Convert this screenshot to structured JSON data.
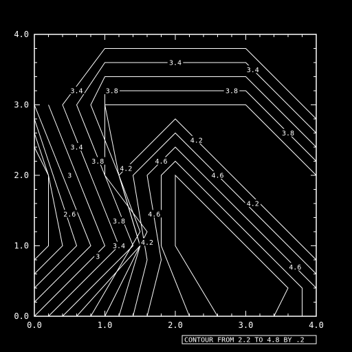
{
  "chart_data": {
    "type": "contour",
    "title": "",
    "xlabel": "",
    "ylabel": "",
    "xlim": [
      0,
      4
    ],
    "ylim": [
      0,
      4
    ],
    "x_ticks": [
      "0.0",
      "1.0",
      "2.0",
      "3.0",
      "4.0"
    ],
    "y_ticks": [
      "0.0",
      "1.0",
      "2.0",
      "3.0",
      "4.0"
    ],
    "grid": false,
    "footer": "CONTOUR FROM 2.2 TO 4.8 BY .2",
    "contour_levels": {
      "min": 2.2,
      "max": 4.8,
      "step": 0.2
    },
    "contours": [
      {
        "points": [
          [
            0.0,
            0.8
          ],
          [
            0.2,
            1.0
          ],
          [
            0.2,
            2.0
          ],
          [
            0.0,
            2.4
          ]
        ]
      },
      {
        "points": [
          [
            0.0,
            0.6
          ],
          [
            0.4,
            1.0
          ],
          [
            0.2,
            2.0
          ],
          [
            0.0,
            2.6
          ]
        ]
      },
      {
        "points": [
          [
            0.0,
            0.4
          ],
          [
            0.6,
            1.0
          ],
          [
            0.2,
            2.2
          ],
          [
            0.0,
            2.8
          ]
        ]
      },
      {
        "points": [
          [
            0.0,
            0.2
          ],
          [
            0.8,
            1.0
          ],
          [
            0.4,
            2.0
          ],
          [
            0.0,
            3.0
          ]
        ]
      },
      {
        "points": [
          [
            0.0,
            0.0
          ],
          [
            1.0,
            1.0
          ],
          [
            0.6,
            2.0
          ],
          [
            0.2,
            3.0
          ]
        ]
      },
      {
        "points": [
          [
            0.2,
            0.0
          ],
          [
            1.2,
            1.0
          ],
          [
            0.8,
            2.0
          ],
          [
            0.4,
            3.0
          ],
          [
            1.0,
            3.8
          ],
          [
            3.0,
            3.8
          ],
          [
            4.0,
            2.8
          ]
        ]
      },
      {
        "points": [
          [
            0.4,
            0.0
          ],
          [
            1.4,
            1.0
          ],
          [
            1.0,
            2.0
          ],
          [
            0.6,
            3.0
          ],
          [
            1.0,
            3.6
          ],
          [
            3.0,
            3.6
          ],
          [
            4.0,
            2.6
          ]
        ]
      },
      {
        "points": [
          [
            0.6,
            0.0
          ],
          [
            1.5,
            1.0
          ],
          [
            1.2,
            2.0
          ],
          [
            0.8,
            3.0
          ],
          [
            1.0,
            3.4
          ],
          [
            3.0,
            3.4
          ],
          [
            4.0,
            2.4
          ]
        ]
      },
      {
        "points": [
          [
            0.8,
            0.0
          ],
          [
            1.5,
            1.2
          ],
          [
            1.2,
            2.0
          ],
          [
            1.0,
            3.0
          ],
          [
            1.0,
            3.2
          ],
          [
            3.0,
            3.2
          ],
          [
            4.0,
            2.2
          ]
        ]
      },
      {
        "points": [
          [
            1.0,
            0.0
          ],
          [
            1.6,
            1.2
          ],
          [
            1.0,
            2.0
          ],
          [
            1.0,
            3.0
          ],
          [
            3.0,
            3.0
          ],
          [
            4.0,
            2.0
          ]
        ]
      },
      {
        "points": [
          [
            1.2,
            0.0
          ],
          [
            1.5,
            1.0
          ],
          [
            1.2,
            2.0
          ],
          [
            2.0,
            2.8
          ],
          [
            4.0,
            0.8
          ]
        ]
      },
      {
        "points": [
          [
            1.4,
            0.0
          ],
          [
            1.6,
            0.8
          ],
          [
            1.4,
            2.0
          ],
          [
            2.0,
            2.6
          ],
          [
            4.0,
            0.6
          ]
        ]
      },
      {
        "points": [
          [
            1.6,
            0.0
          ],
          [
            1.8,
            0.8
          ],
          [
            1.6,
            2.0
          ],
          [
            2.0,
            2.4
          ],
          [
            4.0,
            0.4
          ]
        ]
      },
      {
        "points": [
          [
            2.2,
            0.0
          ],
          [
            1.8,
            1.0
          ],
          [
            1.8,
            2.0
          ],
          [
            2.0,
            2.2
          ],
          [
            3.8,
            0.4
          ],
          [
            3.8,
            0.0
          ]
        ]
      },
      {
        "points": [
          [
            2.6,
            0.0
          ],
          [
            2.0,
            1.0
          ],
          [
            2.0,
            2.0
          ],
          [
            2.0,
            2.0
          ],
          [
            3.6,
            0.4
          ],
          [
            3.4,
            0.0
          ]
        ]
      }
    ],
    "labels": [
      {
        "text": "3.4",
        "x": 2.0,
        "y": 3.6
      },
      {
        "text": "3.4",
        "x": 0.6,
        "y": 3.2
      },
      {
        "text": "3.8",
        "x": 1.1,
        "y": 3.2
      },
      {
        "text": "3.8",
        "x": 2.8,
        "y": 3.2
      },
      {
        "text": "3.4",
        "x": 3.1,
        "y": 3.5
      },
      {
        "text": "3.8",
        "x": 3.6,
        "y": 2.6
      },
      {
        "text": "3.4",
        "x": 0.6,
        "y": 2.4
      },
      {
        "text": "3.8",
        "x": 0.9,
        "y": 2.2
      },
      {
        "text": "4.2",
        "x": 1.3,
        "y": 2.1
      },
      {
        "text": "4.6",
        "x": 1.8,
        "y": 2.2
      },
      {
        "text": "4.2",
        "x": 2.3,
        "y": 2.5
      },
      {
        "text": "3",
        "x": 0.5,
        "y": 2.0
      },
      {
        "text": "2.6",
        "x": 0.5,
        "y": 1.45
      },
      {
        "text": "3.8",
        "x": 1.2,
        "y": 1.35
      },
      {
        "text": "4.6",
        "x": 1.7,
        "y": 1.45
      },
      {
        "text": "4.6",
        "x": 2.6,
        "y": 2.0
      },
      {
        "text": "4.2",
        "x": 3.1,
        "y": 1.6
      },
      {
        "text": "3.4",
        "x": 1.2,
        "y": 1.0
      },
      {
        "text": "4.2",
        "x": 1.6,
        "y": 1.05
      },
      {
        "text": "3",
        "x": 0.9,
        "y": 0.85
      },
      {
        "text": "4.6",
        "x": 3.7,
        "y": 0.7
      }
    ]
  }
}
